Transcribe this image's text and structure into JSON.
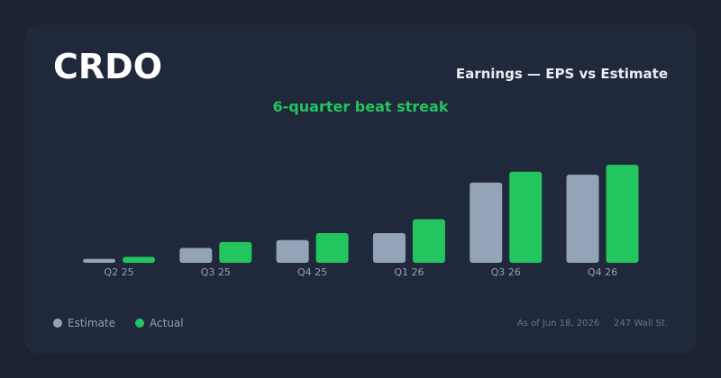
{
  "header": {
    "ticker": "CRDO",
    "title": "Earnings — EPS vs Estimate",
    "subtitle": "6-quarter beat streak"
  },
  "legend": {
    "estimate_label": "Estimate",
    "actual_label": "Actual"
  },
  "footer": {
    "as_of": "As of Jun 18, 2026",
    "source": "247 Wall St."
  },
  "colors": {
    "estimate": "#94a3b8",
    "actual": "#22c55e"
  },
  "chart_data": {
    "type": "bar",
    "categories": [
      "Q2 25",
      "Q3 25",
      "Q4 25",
      "Q1 26",
      "Q3 26",
      "Q4 26"
    ],
    "series": [
      {
        "name": "Estimate",
        "values": [
          0.04,
          0.15,
          0.23,
          0.3,
          0.81,
          0.89
        ]
      },
      {
        "name": "Actual",
        "values": [
          0.06,
          0.21,
          0.3,
          0.44,
          0.92,
          0.99
        ]
      }
    ],
    "ylim": [
      0,
      1.1
    ],
    "grid": false,
    "legend_position": "bottom-left"
  }
}
